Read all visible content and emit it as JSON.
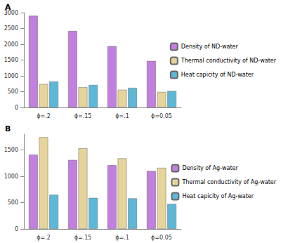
{
  "chart_data": [
    {
      "type": "bar",
      "title": "A",
      "categories": [
        "ϕ=.2",
        "ϕ=.15",
        "ϕ=.1",
        "ϕ=0.05"
      ],
      "series": [
        {
          "name": "Density of ND-water",
          "color": "#c27fdf",
          "values": [
            2900,
            2420,
            1940,
            1470
          ]
        },
        {
          "name": "Thermal conductivity of ND-water",
          "color": "#e6d49a",
          "values": [
            740,
            640,
            560,
            490
          ]
        },
        {
          "name": "Heat capicity of ND-water",
          "color": "#5db8d8",
          "values": [
            820,
            710,
            620,
            520
          ]
        }
      ],
      "ylim": [
        0,
        3000
      ],
      "yticks": [
        0,
        500,
        1000,
        1500,
        2000,
        2500,
        3000
      ],
      "grid": false,
      "legend": "right"
    },
    {
      "type": "bar",
      "title": "B",
      "categories": [
        "ϕ=.2",
        "ϕ=.15",
        "ϕ=.1",
        "ϕ=0.05"
      ],
      "series": [
        {
          "name": "Density of Ag-water",
          "color": "#c27fdf",
          "values": [
            1410,
            1310,
            1210,
            1100
          ]
        },
        {
          "name": "Thermal conductivity of Ag-water",
          "color": "#e6d49a",
          "values": [
            1740,
            1530,
            1340,
            1160
          ]
        },
        {
          "name": "Heat capicity of Ag-water",
          "color": "#5db8d8",
          "values": [
            650,
            590,
            580,
            475
          ]
        }
      ],
      "ylim": [
        0,
        1800
      ],
      "yticks": [
        0,
        500,
        1000,
        1500
      ],
      "grid": false,
      "legend": "right"
    }
  ]
}
